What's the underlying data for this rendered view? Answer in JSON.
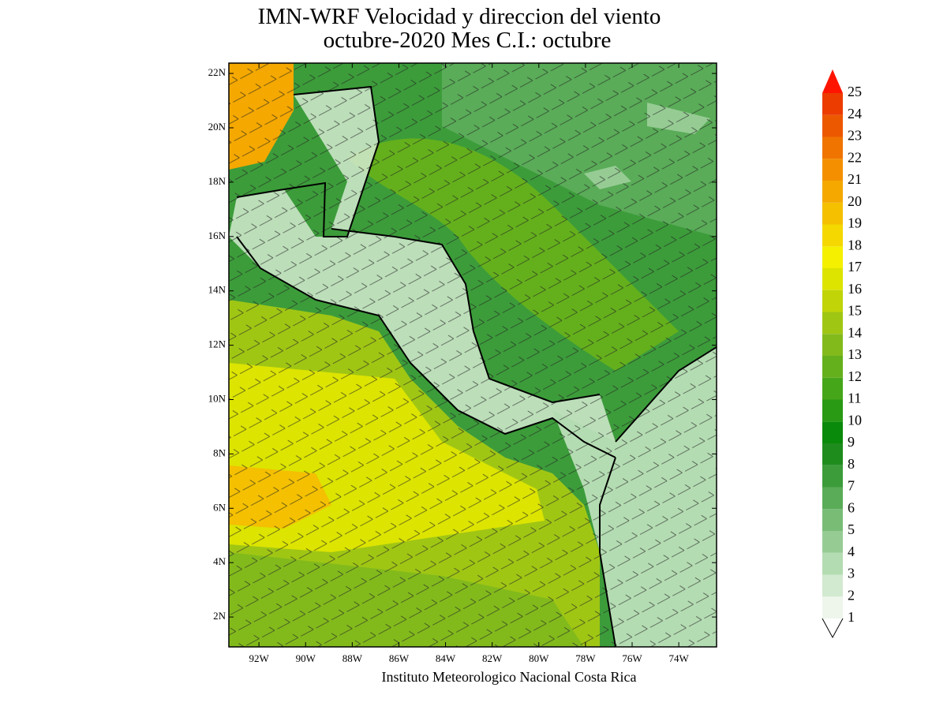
{
  "title": [
    "IMN-WRF Velocidad y direccion del viento",
    "octubre-2020 Mes C.I.: octubre"
  ],
  "map": {
    "lat_range": [
      0.9,
      22.38
    ],
    "lon_range": [
      -93.29,
      -72.38
    ],
    "lat_ticks": [
      {
        "value": 22,
        "label": "22N"
      },
      {
        "value": 20,
        "label": "20N"
      },
      {
        "value": 18,
        "label": "18N"
      },
      {
        "value": 16,
        "label": "16N"
      },
      {
        "value": 14,
        "label": "14N"
      },
      {
        "value": 12,
        "label": "12N"
      },
      {
        "value": 10,
        "label": "10N"
      },
      {
        "value": 8,
        "label": "8N"
      },
      {
        "value": 6,
        "label": "6N"
      },
      {
        "value": 4,
        "label": "4N"
      },
      {
        "value": 2,
        "label": "2N"
      }
    ],
    "lon_ticks": [
      {
        "value": -92,
        "label": "92W"
      },
      {
        "value": -90,
        "label": "90W"
      },
      {
        "value": -88,
        "label": "88W"
      },
      {
        "value": -86,
        "label": "86W"
      },
      {
        "value": -84,
        "label": "84W"
      },
      {
        "value": -82,
        "label": "82W"
      },
      {
        "value": -80,
        "label": "80W"
      },
      {
        "value": -78,
        "label": "78W"
      },
      {
        "value": -76,
        "label": "76W"
      },
      {
        "value": -74,
        "label": "74W"
      }
    ]
  },
  "colorbar": {
    "levels": [
      1,
      2,
      3,
      4,
      5,
      6,
      7,
      8,
      9,
      10,
      11,
      12,
      13,
      14,
      15,
      16,
      17,
      18,
      19,
      20,
      21,
      22,
      23,
      24,
      25
    ],
    "colors": [
      "#eef6ec",
      "#d2ead0",
      "#b4dcb2",
      "#96cc94",
      "#78bc76",
      "#5aac58",
      "#3c9c3a",
      "#1e8c1c",
      "#0a8a0a",
      "#289a14",
      "#46a61a",
      "#64b01c",
      "#82ba1c",
      "#a0c614",
      "#c0d408",
      "#dce400",
      "#f4f000",
      "#f4d800",
      "#f4c000",
      "#f4a800",
      "#f49000",
      "#f07400",
      "#ec5800",
      "#ec3c00"
    ],
    "over_color": "#ff1400"
  },
  "footer": "Instituto Meteorologico Nacional Costa Rica"
}
